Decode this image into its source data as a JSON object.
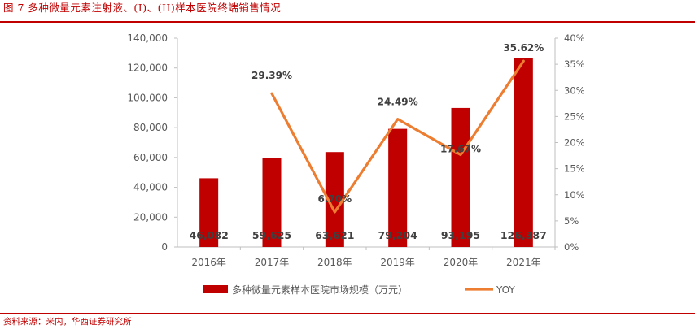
{
  "header": {
    "title": "图 7   多种微量元素注射液、(I)、(II)样本医院终端销售情况"
  },
  "footer": {
    "source": "资料来源：米内，华西证券研究所"
  },
  "colors": {
    "bar": "#c00000",
    "line": "#ed7d31",
    "accent": "#c00000",
    "axis_text": "#595959",
    "label_text": "#404040"
  },
  "chart_data": {
    "type": "bar",
    "categories": [
      "2016年",
      "2017年",
      "2018年",
      "2019年",
      "2020年",
      "2021年"
    ],
    "series": [
      {
        "name": "多种微量元素样本医院市场规模（万元）",
        "type": "bar",
        "axis": "left",
        "values": [
          46082,
          59625,
          63621,
          79204,
          93195,
          126387
        ],
        "labels": [
          "46,082",
          "59,625",
          "63,621",
          "79,204",
          "93,195",
          "126,387"
        ]
      },
      {
        "name": "YOY",
        "type": "line",
        "axis": "right",
        "values": [
          null,
          29.39,
          6.7,
          24.49,
          17.67,
          35.62
        ],
        "labels": [
          "",
          "29.39%",
          "6.70%",
          "24.49%",
          "17.67%",
          "35.62%"
        ]
      }
    ],
    "y_left": {
      "min": 0,
      "max": 140000,
      "ticks": [
        0,
        20000,
        40000,
        60000,
        80000,
        100000,
        120000,
        140000
      ],
      "tick_labels": [
        "0",
        "20,000",
        "40,000",
        "60,000",
        "80,000",
        "100,000",
        "120,000",
        "140,000"
      ]
    },
    "y_right": {
      "min": 0,
      "max": 40,
      "ticks": [
        0,
        5,
        10,
        15,
        20,
        25,
        30,
        35,
        40
      ],
      "tick_labels": [
        "0%",
        "5%",
        "10%",
        "15%",
        "20%",
        "25%",
        "30%",
        "35%",
        "40%"
      ]
    },
    "legend": {
      "position": "bottom",
      "entries": [
        "多种微量元素样本医院市场规模（万元）",
        "YOY"
      ]
    },
    "grid": false
  }
}
